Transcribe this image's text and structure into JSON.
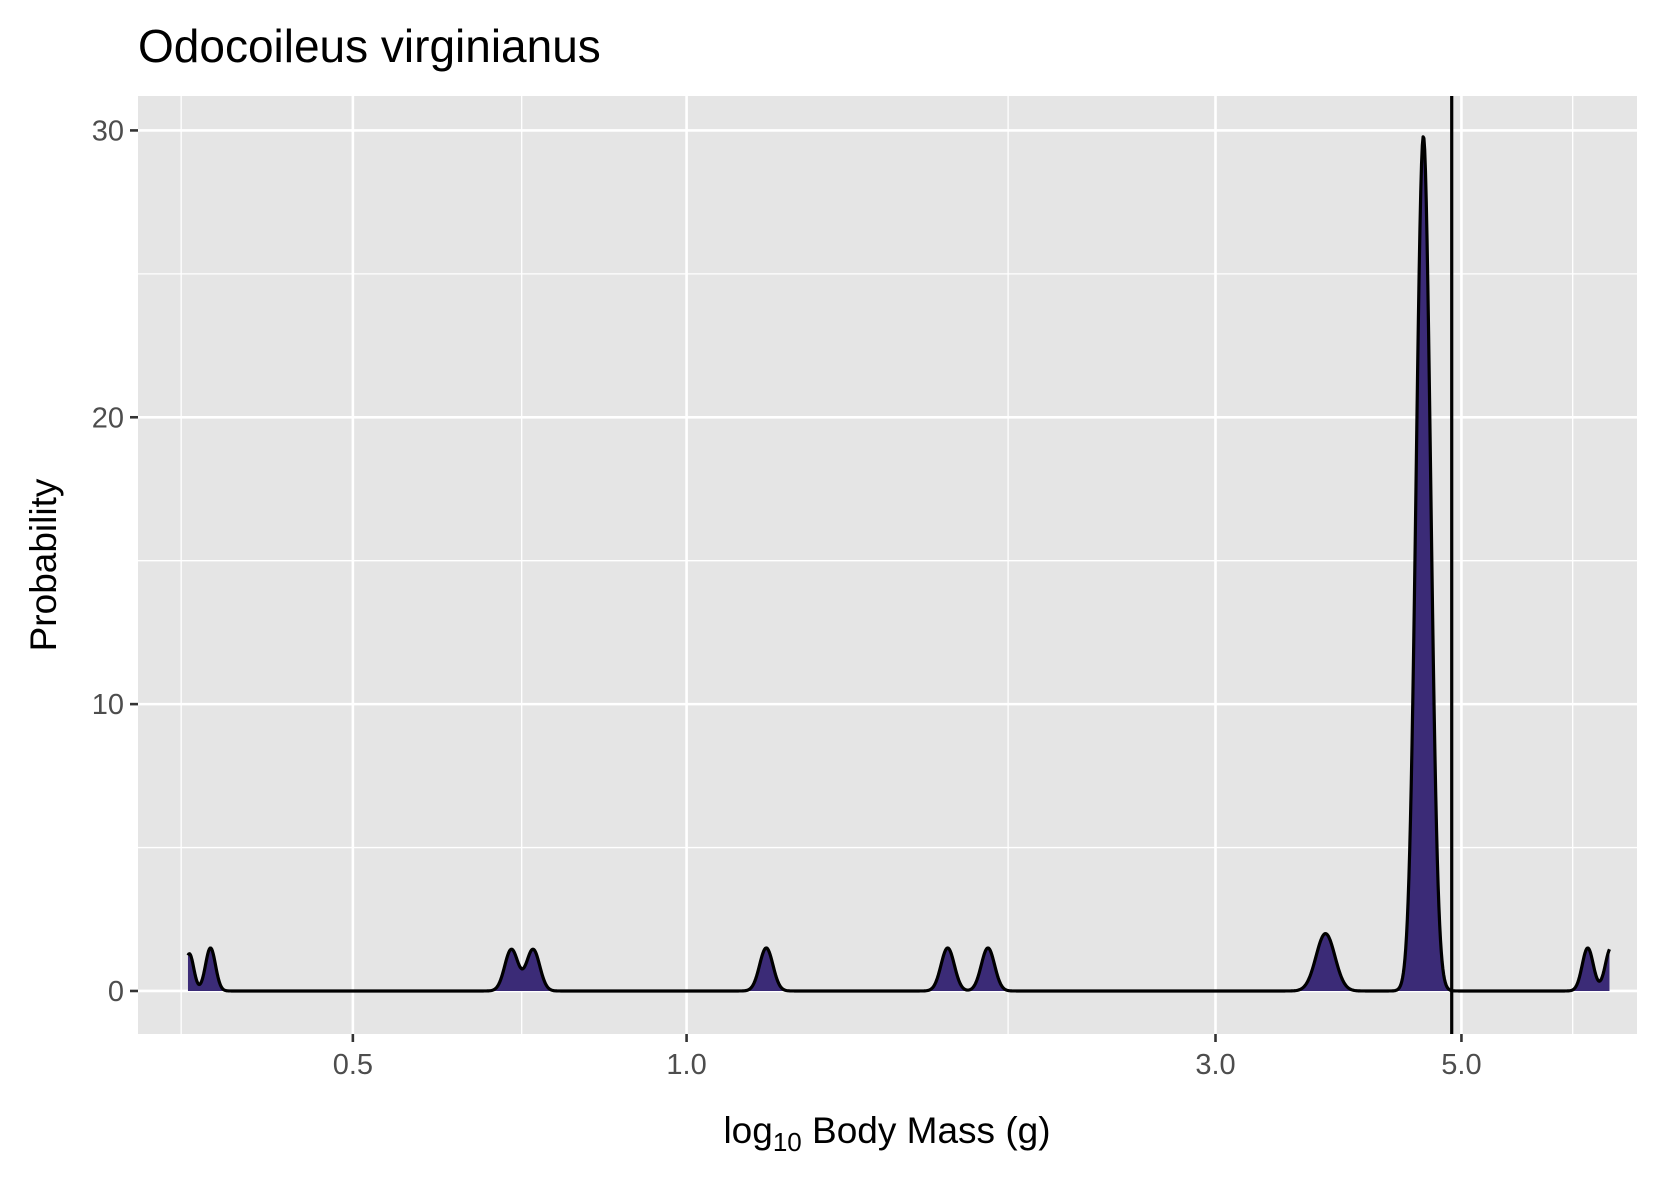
{
  "chart_data": {
    "type": "area",
    "title": "Odocoileus virginianus",
    "xlabel": {
      "prefix": "log",
      "subscript": "10",
      "suffix": " Body Mass (g)"
    },
    "ylabel": "Probability",
    "x_scale": "log10",
    "xlim": [
      0.32,
      7.2
    ],
    "ylim": [
      -1.5,
      31.2
    ],
    "x_ticks": [
      {
        "value": 0.5,
        "label": "0.5"
      },
      {
        "value": 1.0,
        "label": "1.0"
      },
      {
        "value": 3.0,
        "label": "3.0"
      },
      {
        "value": 5.0,
        "label": "5.0"
      }
    ],
    "x_minor_ticks": [
      0.35,
      0.71,
      1.95,
      6.3
    ],
    "y_ticks": [
      {
        "value": 0,
        "label": "0"
      },
      {
        "value": 10,
        "label": "10"
      },
      {
        "value": 20,
        "label": "20"
      },
      {
        "value": 30,
        "label": "30"
      }
    ],
    "y_minor_ticks": [
      5,
      15,
      25
    ],
    "grid": true,
    "fill_color": "#3b2b77",
    "line_color": "#000000",
    "panel_color": "#e5e5e5",
    "grid_color": "#ffffff",
    "x_range": [
      0.355,
      6.8
    ],
    "peaks": [
      {
        "x": 0.356,
        "height": 1.3,
        "width": 0.004
      },
      {
        "x": 0.372,
        "height": 1.5,
        "width": 0.0045
      },
      {
        "x": 0.695,
        "height": 1.45,
        "width": 0.006
      },
      {
        "x": 0.727,
        "height": 1.45,
        "width": 0.006
      },
      {
        "x": 1.18,
        "height": 1.5,
        "width": 0.006
      },
      {
        "x": 1.72,
        "height": 1.5,
        "width": 0.006
      },
      {
        "x": 1.87,
        "height": 1.5,
        "width": 0.006
      },
      {
        "x": 3.77,
        "height": 2.0,
        "width": 0.0085
      },
      {
        "x": 4.62,
        "height": 29.8,
        "width": 0.0065
      },
      {
        "x": 6.5,
        "height": 1.5,
        "width": 0.005
      },
      {
        "x": 6.82,
        "height": 1.5,
        "width": 0.005
      }
    ],
    "reference_line_x": 4.9
  }
}
